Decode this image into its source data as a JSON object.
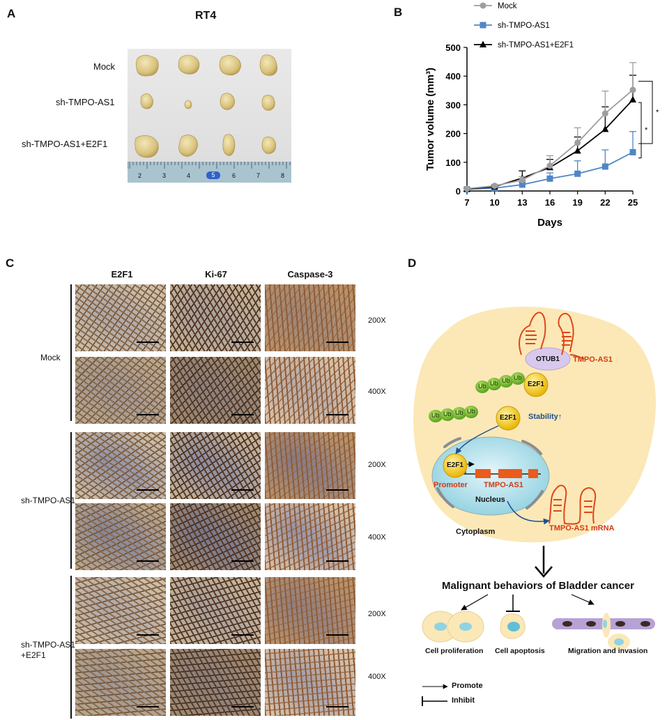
{
  "panels": {
    "a": {
      "letter": "A",
      "title": "RT4",
      "rows": [
        "Mock",
        "sh-TMPO-AS1",
        "sh-TMPO-AS1+E2F1"
      ],
      "ruler_ticks": [
        "2",
        "3",
        "4",
        "5",
        "6",
        "7",
        "8"
      ]
    },
    "b": {
      "letter": "B"
    },
    "c": {
      "letter": "C",
      "columns": [
        "E2F1",
        "Ki-67",
        "Caspase-3"
      ],
      "magnifications": [
        "200X",
        "400X"
      ],
      "groups": [
        "Mock",
        "sh-TMPO-AS1",
        "sh-TMPO-AS1\n+E2F1"
      ]
    },
    "d": {
      "letter": "D",
      "labels": {
        "tmpo": "TMPO-AS1",
        "otub1": "OTUB1",
        "ub": "Ub",
        "e2f1": "E2F1",
        "stability": "Stability↑",
        "promoter": "Promoter",
        "tmpo_gene": "TMPO-AS1",
        "nucleus": "Nucleus",
        "cytoplasm": "Cytoplasm",
        "mrna": "TMPO-AS1 mRNA",
        "malignant": "Malignant behaviors of Bladder cancer",
        "proliferation": "Cell proliferation",
        "apoptosis": "Cell apoptosis",
        "migration": "Migration and invasion",
        "promote": "Promote",
        "inhibit": "Inhibit"
      }
    }
  },
  "chart_data": {
    "type": "line",
    "x": [
      7,
      10,
      13,
      16,
      19,
      22,
      25
    ],
    "xlabel": "Days",
    "ylabel": "Tumor  volume (mm³)",
    "ylim": [
      0,
      500
    ],
    "yticks": [
      0,
      100,
      200,
      300,
      400,
      500
    ],
    "legend_position": "top",
    "series": [
      {
        "name": "Mock",
        "color": "#9e9e9e",
        "marker": "circle",
        "values": [
          8,
          18,
          38,
          88,
          168,
          270,
          352
        ],
        "errors": [
          3,
          5,
          12,
          35,
          52,
          78,
          95
        ]
      },
      {
        "name": "sh-TMPO-AS1",
        "color": "#4f86c6",
        "marker": "square",
        "values": [
          6,
          10,
          22,
          43,
          60,
          85,
          135
        ],
        "errors": [
          2,
          4,
          8,
          20,
          45,
          58,
          72
        ]
      },
      {
        "name": "sh-TMPO-AS1+E2F1",
        "color": "#000000",
        "marker": "triangle",
        "values": [
          7,
          15,
          45,
          82,
          140,
          215,
          318
        ],
        "errors": [
          3,
          5,
          25,
          28,
          48,
          78,
          85
        ]
      }
    ],
    "significance": [
      "*",
      "*"
    ]
  }
}
